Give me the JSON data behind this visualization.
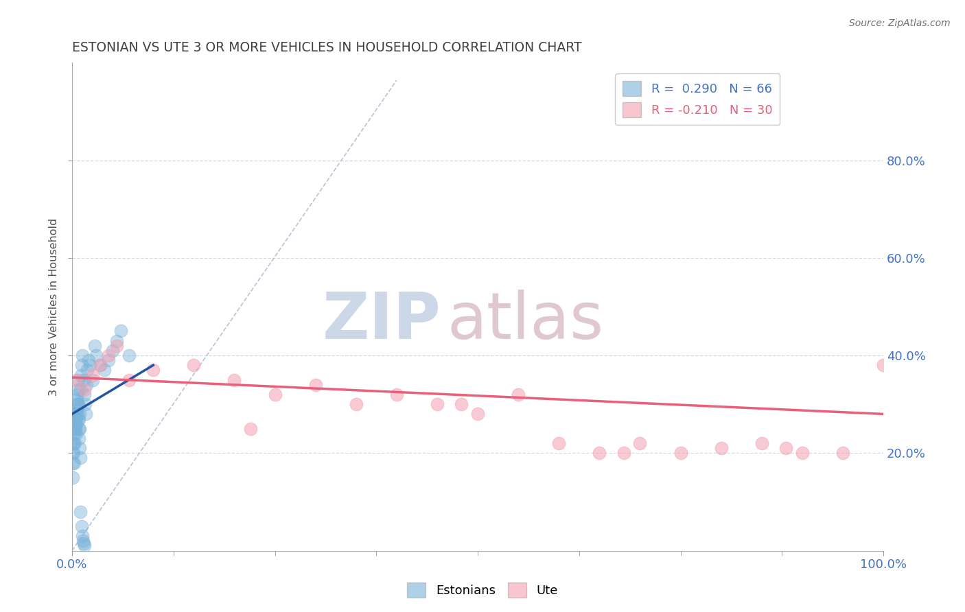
{
  "title": "ESTONIAN VS UTE 3 OR MORE VEHICLES IN HOUSEHOLD CORRELATION CHART",
  "ylabel": "3 or more Vehicles in Household",
  "source_text": "Source: ZipAtlas.com",
  "legend_entries": [
    {
      "label": "R =  0.290   N = 66",
      "color": "#a8c4e0"
    },
    {
      "label": "R = -0.210   N = 30",
      "color": "#f4a8b8"
    }
  ],
  "blue_scatter_x": [
    0.1,
    0.15,
    0.2,
    0.25,
    0.3,
    0.35,
    0.4,
    0.45,
    0.5,
    0.55,
    0.6,
    0.65,
    0.7,
    0.75,
    0.8,
    0.85,
    0.9,
    0.95,
    1.0,
    1.1,
    1.2,
    1.3,
    1.4,
    1.5,
    1.6,
    1.7,
    1.8,
    1.9,
    2.0,
    2.2,
    2.5,
    2.8,
    3.0,
    3.5,
    4.0,
    4.5,
    5.0,
    5.5,
    6.0,
    7.0,
    0.05,
    0.08,
    0.12,
    0.18,
    0.22,
    0.28,
    0.32,
    0.38,
    0.42,
    0.48,
    0.52,
    0.58,
    0.62,
    0.68,
    0.72,
    0.78,
    0.82,
    0.88,
    0.92,
    0.98,
    1.05,
    1.15,
    1.25,
    1.35,
    1.45,
    1.55
  ],
  "blue_scatter_y": [
    25.0,
    22.0,
    20.0,
    18.0,
    22.0,
    25.0,
    28.0,
    26.0,
    24.0,
    27.0,
    30.0,
    28.0,
    32.0,
    35.0,
    30.0,
    27.0,
    25.0,
    28.0,
    33.0,
    36.0,
    38.0,
    40.0,
    35.0,
    32.0,
    30.0,
    28.0,
    34.0,
    37.0,
    39.0,
    38.0,
    35.0,
    42.0,
    40.0,
    38.0,
    37.0,
    39.0,
    41.0,
    43.0,
    45.0,
    40.0,
    15.0,
    18.0,
    20.0,
    22.0,
    24.0,
    26.0,
    28.0,
    27.0,
    25.0,
    28.0,
    26.0,
    29.0,
    31.0,
    33.0,
    30.0,
    27.0,
    25.0,
    23.0,
    21.0,
    19.0,
    8.0,
    5.0,
    3.0,
    2.0,
    1.5,
    1.0
  ],
  "pink_scatter_x": [
    0.5,
    1.5,
    2.5,
    3.5,
    4.5,
    5.5,
    7.0,
    10.0,
    15.0,
    20.0,
    25.0,
    30.0,
    35.0,
    40.0,
    45.0,
    50.0,
    55.0,
    60.0,
    65.0,
    70.0,
    75.0,
    80.0,
    85.0,
    90.0,
    95.0,
    100.0,
    22.0,
    48.0,
    68.0,
    88.0
  ],
  "pink_scatter_y": [
    35.0,
    33.0,
    36.0,
    38.0,
    40.0,
    42.0,
    35.0,
    37.0,
    38.0,
    35.0,
    32.0,
    34.0,
    30.0,
    32.0,
    30.0,
    28.0,
    32.0,
    22.0,
    20.0,
    22.0,
    20.0,
    21.0,
    22.0,
    20.0,
    20.0,
    38.0,
    25.0,
    30.0,
    20.0,
    21.0
  ],
  "blue_line_x": [
    0.0,
    10.0
  ],
  "blue_line_y": [
    28.0,
    38.0
  ],
  "pink_line_x": [
    0.0,
    100.0
  ],
  "pink_line_y": [
    35.5,
    28.0
  ],
  "diag_line_x": [
    0.0,
    40.0
  ],
  "diag_line_y": [
    0.0,
    80.0
  ],
  "xlim": [
    0.0,
    100.0
  ],
  "ylim": [
    0.0,
    83.0
  ],
  "y_tick_values": [
    20.0,
    40.0,
    60.0,
    80.0
  ],
  "y_tick_pct": [
    20.0,
    40.0,
    60.0,
    80.0
  ],
  "right_ytick_labels": [
    "20.0%",
    "40.0%",
    "60.0%",
    "80.0%"
  ],
  "x_tick_positions": [
    0.0,
    12.5,
    25.0,
    37.5,
    50.0,
    62.5,
    75.0,
    87.5,
    100.0
  ],
  "blue_color": "#7ab3d9",
  "pink_color": "#f4a0b0",
  "blue_line_color": "#2255a0",
  "pink_line_color": "#e8607a",
  "diag_color": "#b0b8cc",
  "title_color": "#404040",
  "watermark_zip_color": "#ccd8e8",
  "watermark_atlas_color": "#e0c8d0",
  "background_color": "#ffffff",
  "grid_color": "#d0d8e0"
}
